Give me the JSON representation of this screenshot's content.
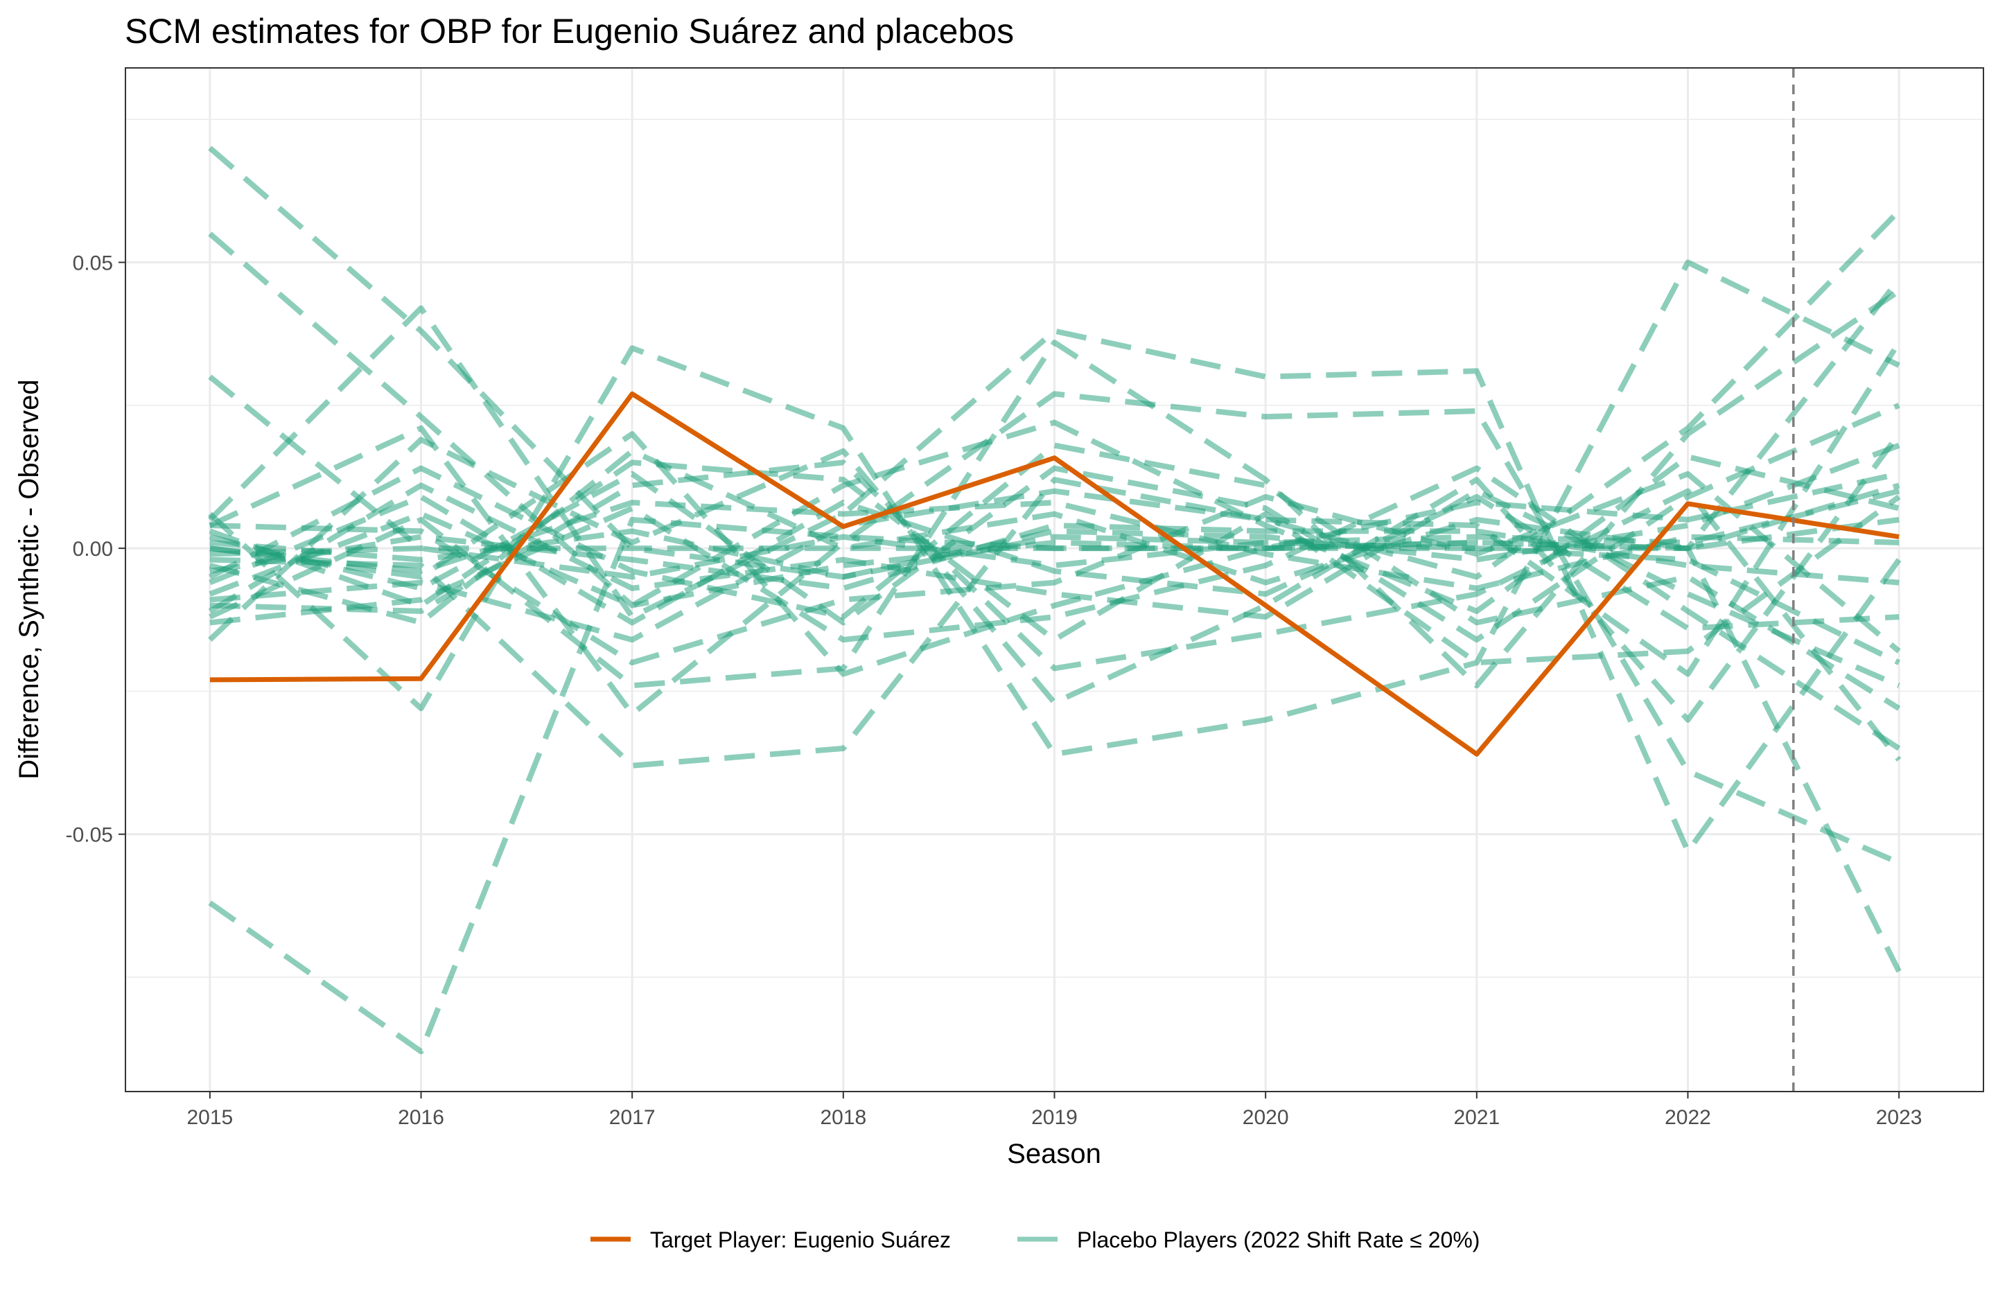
{
  "chart_data": {
    "type": "line",
    "title": "SCM estimates for OBP for Eugenio Suárez and placebos",
    "xlabel": "Season",
    "ylabel": "Difference, Synthetic - Observed",
    "x": [
      2015,
      2016,
      2017,
      2018,
      2019,
      2020,
      2021,
      2022,
      2023
    ],
    "x_tick_labels": [
      "2015",
      "2016",
      "2017",
      "2018",
      "2019",
      "2020",
      "2021",
      "2022",
      "2023"
    ],
    "xlim": [
      2014.6,
      2023.4
    ],
    "y_ticks": [
      -0.05,
      0.0,
      0.05
    ],
    "y_tick_labels": [
      "-0.05",
      "0.00",
      "0.05"
    ],
    "ylim": [
      -0.095,
      0.084
    ],
    "grid": true,
    "vertical_reference_line": {
      "x": 2022.5,
      "style": "dashed",
      "color": "#7f7f7f"
    },
    "legend_position": "bottom",
    "colors": {
      "target": "#d95f02",
      "placebo": "#1b9e77"
    },
    "target_series": {
      "name": "Target Player: Eugenio Suárez",
      "values": [
        -0.023,
        -0.0228,
        0.027,
        0.0038,
        0.0158,
        -0.01,
        -0.036,
        0.0078,
        0.002
      ]
    },
    "placebo_legend_name": "Placebo Players (2022 Shift Rate ≤ 20%)",
    "placebo_series": [
      {
        "values": [
          0.07,
          0.038,
          0.0,
          -0.005,
          0.002,
          0.001,
          0.0,
          -0.002,
          -0.02
        ]
      },
      {
        "values": [
          0.055,
          0.023,
          -0.01,
          -0.003,
          0.001,
          0.0,
          0.001,
          0.0,
          0.047
        ]
      },
      {
        "values": [
          0.03,
          0.0,
          -0.005,
          0.002,
          -0.003,
          0.001,
          0.002,
          0.001,
          0.01
        ]
      },
      {
        "values": [
          -0.062,
          -0.088,
          0.005,
          0.002,
          0.0,
          0.0,
          0.001,
          0.0,
          -0.074
        ]
      },
      {
        "values": [
          0.006,
          -0.028,
          0.035,
          0.021,
          -0.036,
          -0.03,
          -0.02,
          0.05,
          0.032
        ]
      },
      {
        "values": [
          0.005,
          0.042,
          -0.012,
          0.006,
          0.038,
          0.03,
          0.031,
          -0.053,
          -0.002
        ]
      },
      {
        "values": [
          0.004,
          0.021,
          -0.029,
          0.001,
          0.027,
          0.023,
          0.024,
          -0.039,
          -0.055
        ]
      },
      {
        "values": [
          -0.002,
          -0.003,
          -0.038,
          -0.035,
          0.012,
          0.005,
          -0.005,
          0.021,
          0.059
        ]
      },
      {
        "values": [
          -0.016,
          0.019,
          0.001,
          0.017,
          -0.027,
          -0.01,
          0.012,
          -0.03,
          0.02
        ]
      },
      {
        "values": [
          -0.012,
          0.005,
          -0.024,
          -0.021,
          0.036,
          0.012,
          -0.024,
          0.02,
          0.045
        ]
      },
      {
        "values": [
          -0.01,
          -0.011,
          0.011,
          0.015,
          -0.021,
          -0.015,
          -0.008,
          0.01,
          -0.037
        ]
      },
      {
        "values": [
          -0.009,
          -0.006,
          -0.016,
          0.004,
          0.01,
          0.005,
          0.004,
          -0.022,
          0.036
        ]
      },
      {
        "values": [
          0.0,
          -0.005,
          0.02,
          -0.022,
          -0.01,
          0.0,
          0.008,
          0.005,
          0.013
        ]
      },
      {
        "values": [
          -0.005,
          0.014,
          -0.004,
          -0.012,
          0.018,
          0.011,
          -0.013,
          -0.005,
          -0.028
        ]
      },
      {
        "values": [
          -0.003,
          -0.013,
          0.017,
          0.0,
          0.006,
          -0.006,
          0.005,
          0.0,
          0.005
        ]
      },
      {
        "values": [
          0.004,
          0.003,
          -0.02,
          -0.009,
          -0.006,
          0.009,
          -0.001,
          0.013,
          -0.018
        ]
      },
      {
        "values": [
          -0.008,
          0.006,
          -0.01,
          0.011,
          0.022,
          0.004,
          -0.011,
          0.016,
          0.007
        ]
      },
      {
        "values": [
          -0.013,
          -0.009,
          0.007,
          -0.016,
          -0.012,
          -0.003,
          0.014,
          -0.011,
          -0.035
        ]
      },
      {
        "values": [
          0.001,
          -0.002,
          0.003,
          -0.005,
          0.003,
          0.002,
          -0.002,
          0.004,
          0.018
        ]
      },
      {
        "values": [
          -0.006,
          0.009,
          -0.013,
          0.008,
          -0.004,
          -0.008,
          0.009,
          -0.014,
          -0.012
        ]
      },
      {
        "values": [
          0.002,
          -0.007,
          0.013,
          -0.013,
          0.014,
          0.007,
          -0.016,
          0.009,
          0.025
        ]
      },
      {
        "values": [
          -0.011,
          0.011,
          -0.007,
          -0.002,
          -0.008,
          -0.012,
          0.01,
          -0.008,
          -0.024
        ]
      },
      {
        "values": [
          0.0,
          -0.004,
          0.008,
          0.006,
          0.008,
          -0.001,
          -0.007,
          0.002,
          0.001
        ]
      },
      {
        "values": [
          -0.004,
          0.002,
          -0.002,
          -0.007,
          0.004,
          0.003,
          0.003,
          -0.003,
          -0.006
        ]
      },
      {
        "values": [
          0.003,
          -0.01,
          0.015,
          0.012,
          -0.016,
          0.006,
          -0.02,
          -0.018,
          0.009
        ]
      },
      {
        "values": [
          -0.001,
          0.0,
          0.0,
          0.0,
          0.0,
          0.0,
          0.0,
          0.0,
          0.011
        ]
      }
    ]
  }
}
